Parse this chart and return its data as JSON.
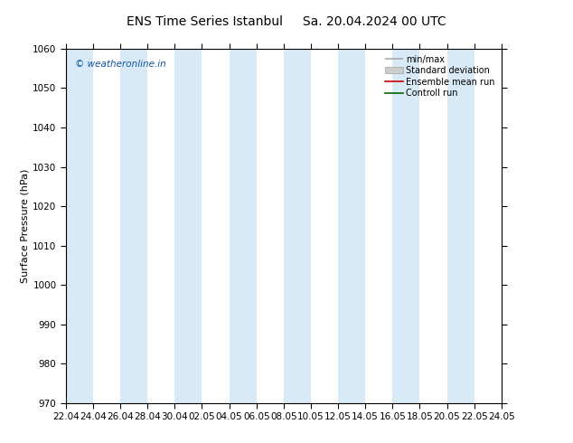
{
  "title": "ENS Time Series Istanbul",
  "title2": "Sa. 20.04.2024 00 UTC",
  "ylabel": "Surface Pressure (hPa)",
  "ylim": [
    970,
    1060
  ],
  "yticks": [
    970,
    980,
    990,
    1000,
    1010,
    1020,
    1030,
    1040,
    1050,
    1060
  ],
  "xtick_labels": [
    "22.04",
    "24.04",
    "26.04",
    "28.04",
    "30.04",
    "02.05",
    "04.05",
    "06.05",
    "08.05",
    "10.05",
    "12.05",
    "14.05",
    "16.05",
    "18.05",
    "20.05",
    "22.05",
    "24.05"
  ],
  "band_color": "#d8eaf6",
  "watermark": "© weatheronline.in",
  "watermark_color": "#1155aa",
  "legend_labels": [
    "min/max",
    "Standard deviation",
    "Ensemble mean run",
    "Controll run"
  ],
  "legend_line_color": "#aaaaaa",
  "legend_std_color": "#cccccc",
  "legend_ens_color": "#cc0000",
  "legend_ctrl_color": "#006600",
  "background_color": "#ffffff",
  "plot_bg_color": "#ffffff",
  "title_fontsize": 10,
  "axis_label_fontsize": 8,
  "tick_fontsize": 7.5,
  "watermark_fontsize": 7.5,
  "legend_fontsize": 7
}
